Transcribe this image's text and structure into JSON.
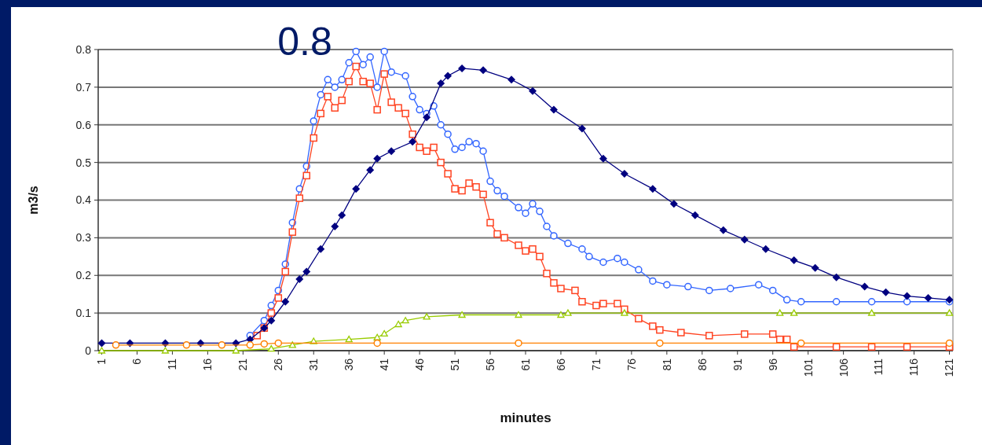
{
  "chart_data": {
    "type": "line",
    "xlabel": "minutes",
    "ylabel": "m3/s",
    "annotations": [
      "0.8"
    ],
    "xlim": [
      0.5,
      121.5
    ],
    "xticks": [
      1,
      6,
      11,
      16,
      21,
      26,
      31,
      36,
      41,
      46,
      51,
      56,
      61,
      66,
      71,
      76,
      81,
      86,
      91,
      96,
      101,
      106,
      111,
      116,
      121
    ],
    "ylim": [
      0,
      0.8
    ],
    "yticks": [
      0,
      {
        "value": 0.1,
        "label": "0.1"
      },
      {
        "value": 0.2,
        "label": "0.2"
      },
      {
        "value": 0.3,
        "label": "0.3"
      },
      {
        "value": 0.4,
        "label": "0.4"
      },
      {
        "value": 0.5,
        "label": "0.5"
      },
      {
        "value": 0.6,
        "label": "0.6"
      },
      {
        "value": 0.7,
        "label": "0.7"
      },
      {
        "value": 0.8,
        "label": "0.8"
      }
    ],
    "grid": "y",
    "series": [
      {
        "color": "#3366ff",
        "marker": "circle",
        "x": [
          22,
          24,
          25,
          26,
          27,
          28,
          29,
          30,
          31,
          32,
          33,
          34,
          35,
          36,
          37,
          38,
          39,
          40,
          41,
          42,
          44,
          45,
          46,
          47,
          48,
          49,
          50,
          51,
          52,
          53,
          54,
          55,
          56,
          57,
          58,
          60,
          61,
          62,
          63,
          64,
          65,
          67,
          69,
          70,
          72,
          74,
          75,
          77,
          79,
          81,
          84,
          87,
          90,
          94,
          96,
          98,
          100,
          105,
          110,
          115,
          121
        ],
        "values": [
          0.04,
          0.08,
          0.12,
          0.16,
          0.23,
          0.34,
          0.43,
          0.49,
          0.61,
          0.68,
          0.72,
          0.7,
          0.72,
          0.765,
          0.795,
          0.76,
          0.78,
          0.7,
          0.795,
          0.74,
          0.73,
          0.675,
          0.64,
          0.63,
          0.65,
          0.6,
          0.575,
          0.535,
          0.54,
          0.555,
          0.55,
          0.53,
          0.45,
          0.425,
          0.41,
          0.38,
          0.365,
          0.39,
          0.37,
          0.33,
          0.305,
          0.285,
          0.27,
          0.25,
          0.235,
          0.245,
          0.235,
          0.215,
          0.185,
          0.175,
          0.17,
          0.16,
          0.165,
          0.175,
          0.16,
          0.135,
          0.13,
          0.13,
          0.13,
          0.13,
          0.13
        ]
      },
      {
        "color": "#ff4422",
        "marker": "square",
        "x": [
          23,
          24,
          25,
          26,
          27,
          28,
          29,
          30,
          31,
          32,
          33,
          34,
          35,
          36,
          37,
          38,
          39,
          40,
          41,
          42,
          43,
          44,
          45,
          46,
          47,
          48,
          49,
          50,
          51,
          52,
          53,
          54,
          55,
          56,
          57,
          58,
          60,
          61,
          62,
          63,
          64,
          65,
          66,
          68,
          69,
          71,
          72,
          74,
          75,
          77,
          79,
          80,
          83,
          87,
          92,
          96,
          97,
          98,
          99,
          105,
          110,
          115,
          121
        ],
        "values": [
          0.04,
          0.06,
          0.1,
          0.14,
          0.21,
          0.315,
          0.405,
          0.465,
          0.565,
          0.63,
          0.675,
          0.645,
          0.665,
          0.715,
          0.755,
          0.715,
          0.71,
          0.64,
          0.735,
          0.66,
          0.645,
          0.63,
          0.575,
          0.54,
          0.53,
          0.54,
          0.5,
          0.47,
          0.43,
          0.425,
          0.445,
          0.435,
          0.415,
          0.34,
          0.31,
          0.3,
          0.28,
          0.265,
          0.27,
          0.25,
          0.205,
          0.18,
          0.165,
          0.16,
          0.13,
          0.12,
          0.125,
          0.125,
          0.11,
          0.085,
          0.065,
          0.055,
          0.048,
          0.04,
          0.044,
          0.044,
          0.03,
          0.03,
          0.01,
          0.01,
          0.01,
          0.01,
          0.01
        ]
      },
      {
        "color": "#000080",
        "marker": "diamond",
        "x": [
          1,
          5,
          10,
          15,
          20,
          22,
          24,
          25,
          27,
          29,
          30,
          32,
          34,
          35,
          37,
          39,
          40,
          42,
          45,
          47,
          49,
          50,
          52,
          55,
          59,
          62,
          65,
          69,
          72,
          75,
          79,
          82,
          85,
          89,
          92,
          95,
          99,
          102,
          105,
          109,
          112,
          115,
          118,
          121
        ],
        "values": [
          0.02,
          0.02,
          0.02,
          0.02,
          0.02,
          0.03,
          0.06,
          0.08,
          0.13,
          0.19,
          0.21,
          0.27,
          0.33,
          0.36,
          0.43,
          0.48,
          0.51,
          0.53,
          0.555,
          0.62,
          0.71,
          0.73,
          0.75,
          0.745,
          0.72,
          0.69,
          0.64,
          0.59,
          0.51,
          0.47,
          0.43,
          0.39,
          0.36,
          0.32,
          0.295,
          0.27,
          0.24,
          0.22,
          0.195,
          0.17,
          0.155,
          0.145,
          0.14,
          0.135
        ]
      },
      {
        "color": "#99cc00",
        "marker": "triangle",
        "x": [
          1,
          10,
          20,
          25,
          28,
          31,
          36,
          40,
          41,
          43,
          44,
          47,
          52,
          60,
          66,
          67,
          75,
          97,
          99,
          110,
          121
        ],
        "values": [
          0,
          0,
          0,
          0.005,
          0.015,
          0.025,
          0.03,
          0.035,
          0.045,
          0.07,
          0.08,
          0.09,
          0.095,
          0.095,
          0.095,
          0.1,
          0.1,
          0.1,
          0.1,
          0.1,
          0.1
        ]
      },
      {
        "color": "#ff8000",
        "marker": "circle",
        "x": [
          3,
          13,
          18,
          22,
          24,
          26,
          40,
          60,
          80,
          100,
          121
        ],
        "values": [
          0.015,
          0.015,
          0.015,
          0.015,
          0.018,
          0.02,
          0.02,
          0.02,
          0.02,
          0.02,
          0.02
        ]
      }
    ]
  }
}
